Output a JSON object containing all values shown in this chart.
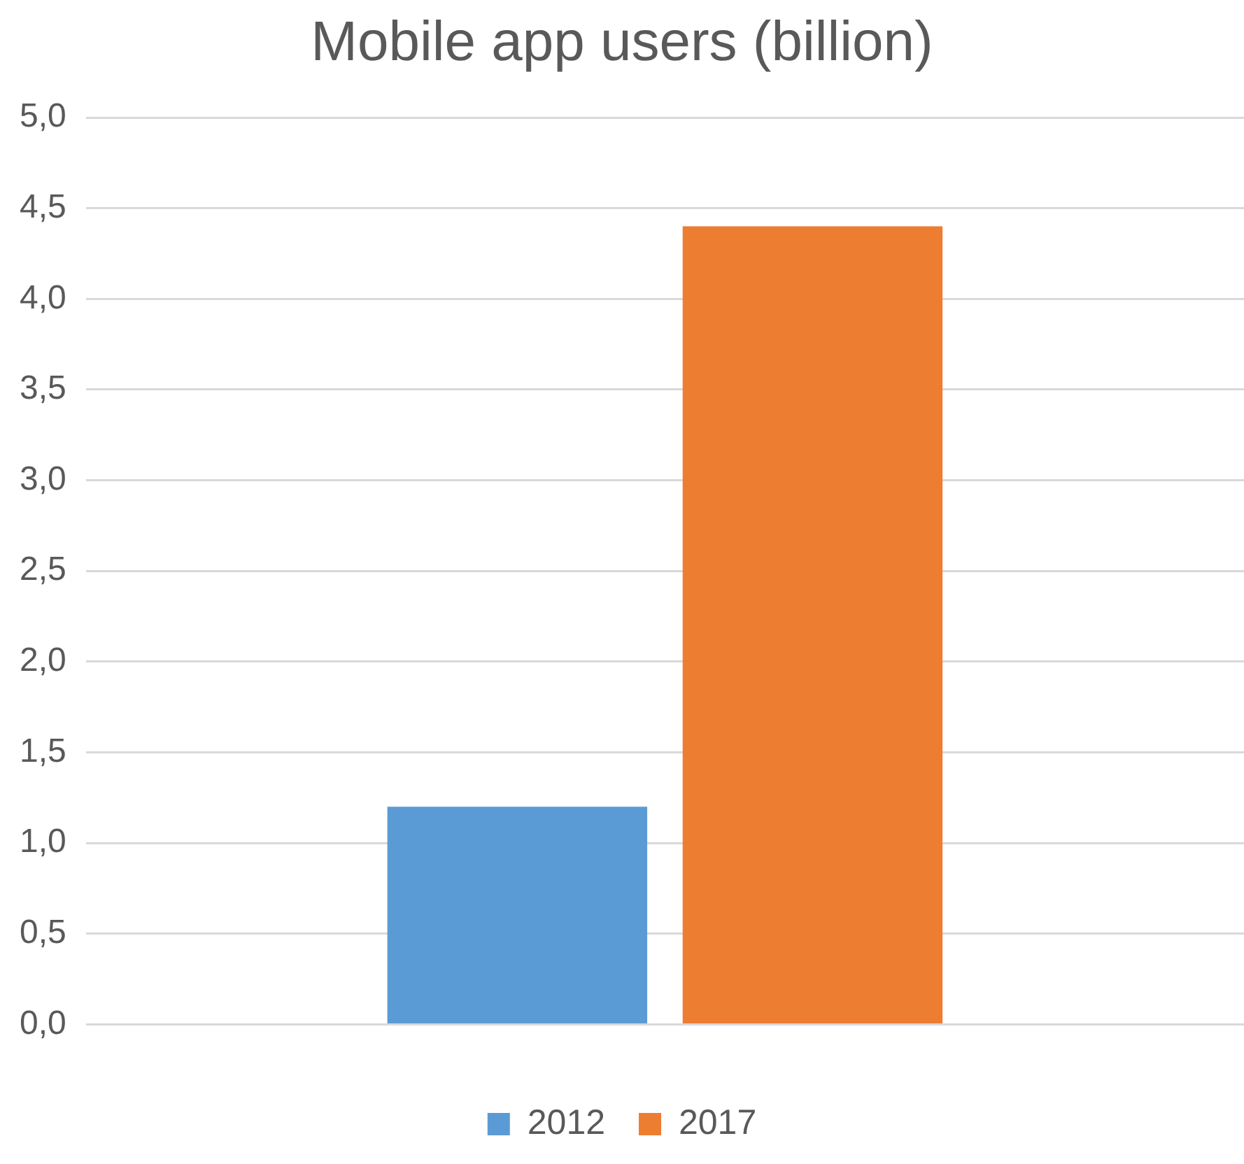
{
  "chart_data": {
    "type": "bar",
    "title": "Mobile app users (billion)",
    "categories": [
      null
    ],
    "series": [
      {
        "name": "2012",
        "color": "#5b9bd5",
        "values": [
          1.2
        ]
      },
      {
        "name": "2017",
        "color": "#ed7d31",
        "values": [
          4.4
        ]
      }
    ],
    "ylim": [
      0,
      5
    ],
    "yticks": [
      {
        "value": 0,
        "label": "0,0"
      },
      {
        "value": 0.5,
        "label": "0,5"
      },
      {
        "value": 1,
        "label": "1,0"
      },
      {
        "value": 1.5,
        "label": "1,5"
      },
      {
        "value": 2,
        "label": "2,0"
      },
      {
        "value": 2.5,
        "label": "2,5"
      },
      {
        "value": 3,
        "label": "3,0"
      },
      {
        "value": 3.5,
        "label": "3,5"
      },
      {
        "value": 4,
        "label": "4,0"
      },
      {
        "value": 4.5,
        "label": "4,5"
      },
      {
        "value": 5,
        "label": "5,0"
      }
    ],
    "grid": "y",
    "legend": "bottom"
  }
}
